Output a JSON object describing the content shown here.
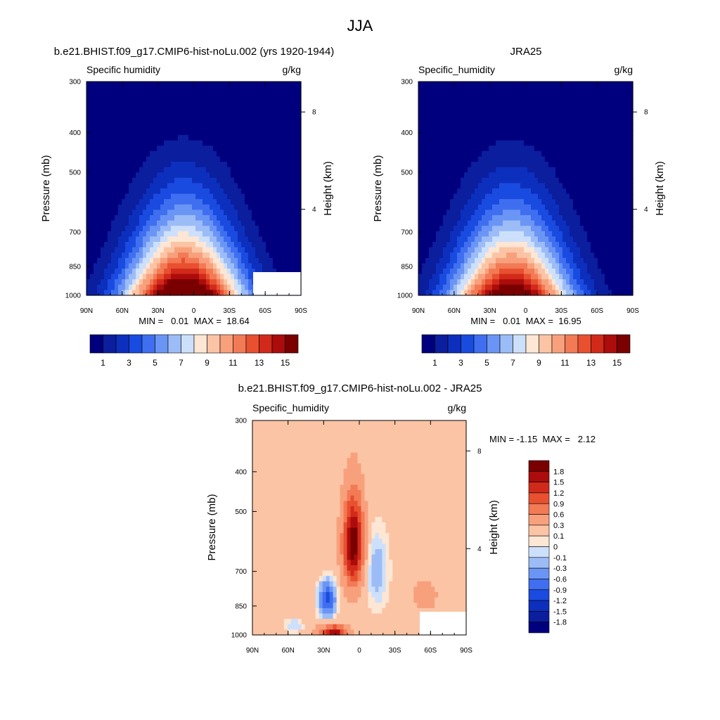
{
  "figure_title": "JJA",
  "chart_data": [
    {
      "type": "heatmap",
      "title": "b.e21.BHIST.f09_g17.CMIP6-hist-noLu.002 (yrs 1920-1944)",
      "variable": "Specific humidity",
      "units": "g/kg",
      "ylabel": "Pressure (mb)",
      "ylabel_right": "Height (km)",
      "x_ticks": [
        "90N",
        "60N",
        "30N",
        "0",
        "30S",
        "60S",
        "90S"
      ],
      "y_ticks": [
        300,
        400,
        500,
        700,
        850,
        1000
      ],
      "height_ticks": [
        8,
        4
      ],
      "stats": "MIN =   0.01  MAX =  18.64",
      "min": 0.01,
      "max": 18.64,
      "peak_lat": 8,
      "colorbar_labels": [
        "1",
        "3",
        "5",
        "7",
        "9",
        "11",
        "13",
        "15"
      ]
    },
    {
      "type": "heatmap",
      "title": "JRA25",
      "variable": "Specific_humidity",
      "units": "g/kg",
      "ylabel": "Pressure (mb)",
      "ylabel_right": "Height (km)",
      "x_ticks": [
        "90N",
        "60N",
        "30N",
        "0",
        "30S",
        "60S",
        "90S"
      ],
      "y_ticks": [
        300,
        400,
        500,
        700,
        850,
        1000
      ],
      "height_ticks": [
        8,
        4
      ],
      "stats": "MIN =   0.01  MAX =  16.95",
      "min": 0.01,
      "max": 16.95,
      "peak_lat": 12,
      "colorbar_labels": [
        "1",
        "3",
        "5",
        "7",
        "9",
        "11",
        "13",
        "15"
      ]
    },
    {
      "type": "heatmap",
      "title": "b.e21.BHIST.f09_g17.CMIP6-hist-noLu.002 - JRA25",
      "variable": "Specific_humidity",
      "units": "g/kg",
      "ylabel": "Pressure (mb)",
      "ylabel_right": "Height (km)",
      "x_ticks": [
        "90N",
        "60N",
        "30N",
        "0",
        "30S",
        "60S",
        "90S"
      ],
      "y_ticks": [
        300,
        400,
        500,
        700,
        850,
        1000
      ],
      "height_ticks": [
        8,
        4
      ],
      "stats": "MIN = -1.15  MAX =   2.12",
      "min": -1.15,
      "max": 2.12,
      "colorbar_labels": [
        "1.8",
        "1.5",
        "1.2",
        "0.9",
        "0.6",
        "0.3",
        "0.1",
        "0",
        "-0.1",
        "-0.3",
        "-0.6",
        "-0.9",
        "-1.2",
        "-1.5",
        "-1.8"
      ]
    }
  ],
  "colors": {
    "humidity_scale": [
      "#00007f",
      "#0a1e9e",
      "#0d2fbd",
      "#1a4be0",
      "#3f6ff0",
      "#6b95f5",
      "#9cbcf7",
      "#cde0fb",
      "#fde6d4",
      "#fbc4a5",
      "#f8a07c",
      "#f27a55",
      "#e8502f",
      "#d12a1a",
      "#ac0c0c",
      "#7a0000"
    ],
    "diff_scale": [
      "#00007f",
      "#0a1e9e",
      "#0d2fbd",
      "#1a4be0",
      "#3f6ff0",
      "#6b95f5",
      "#9cbcf7",
      "#cde0fb",
      "#fde6d4",
      "#fbc4a5",
      "#f8a07c",
      "#f27a55",
      "#e8502f",
      "#d12a1a",
      "#ac0c0c",
      "#7a0000"
    ]
  }
}
